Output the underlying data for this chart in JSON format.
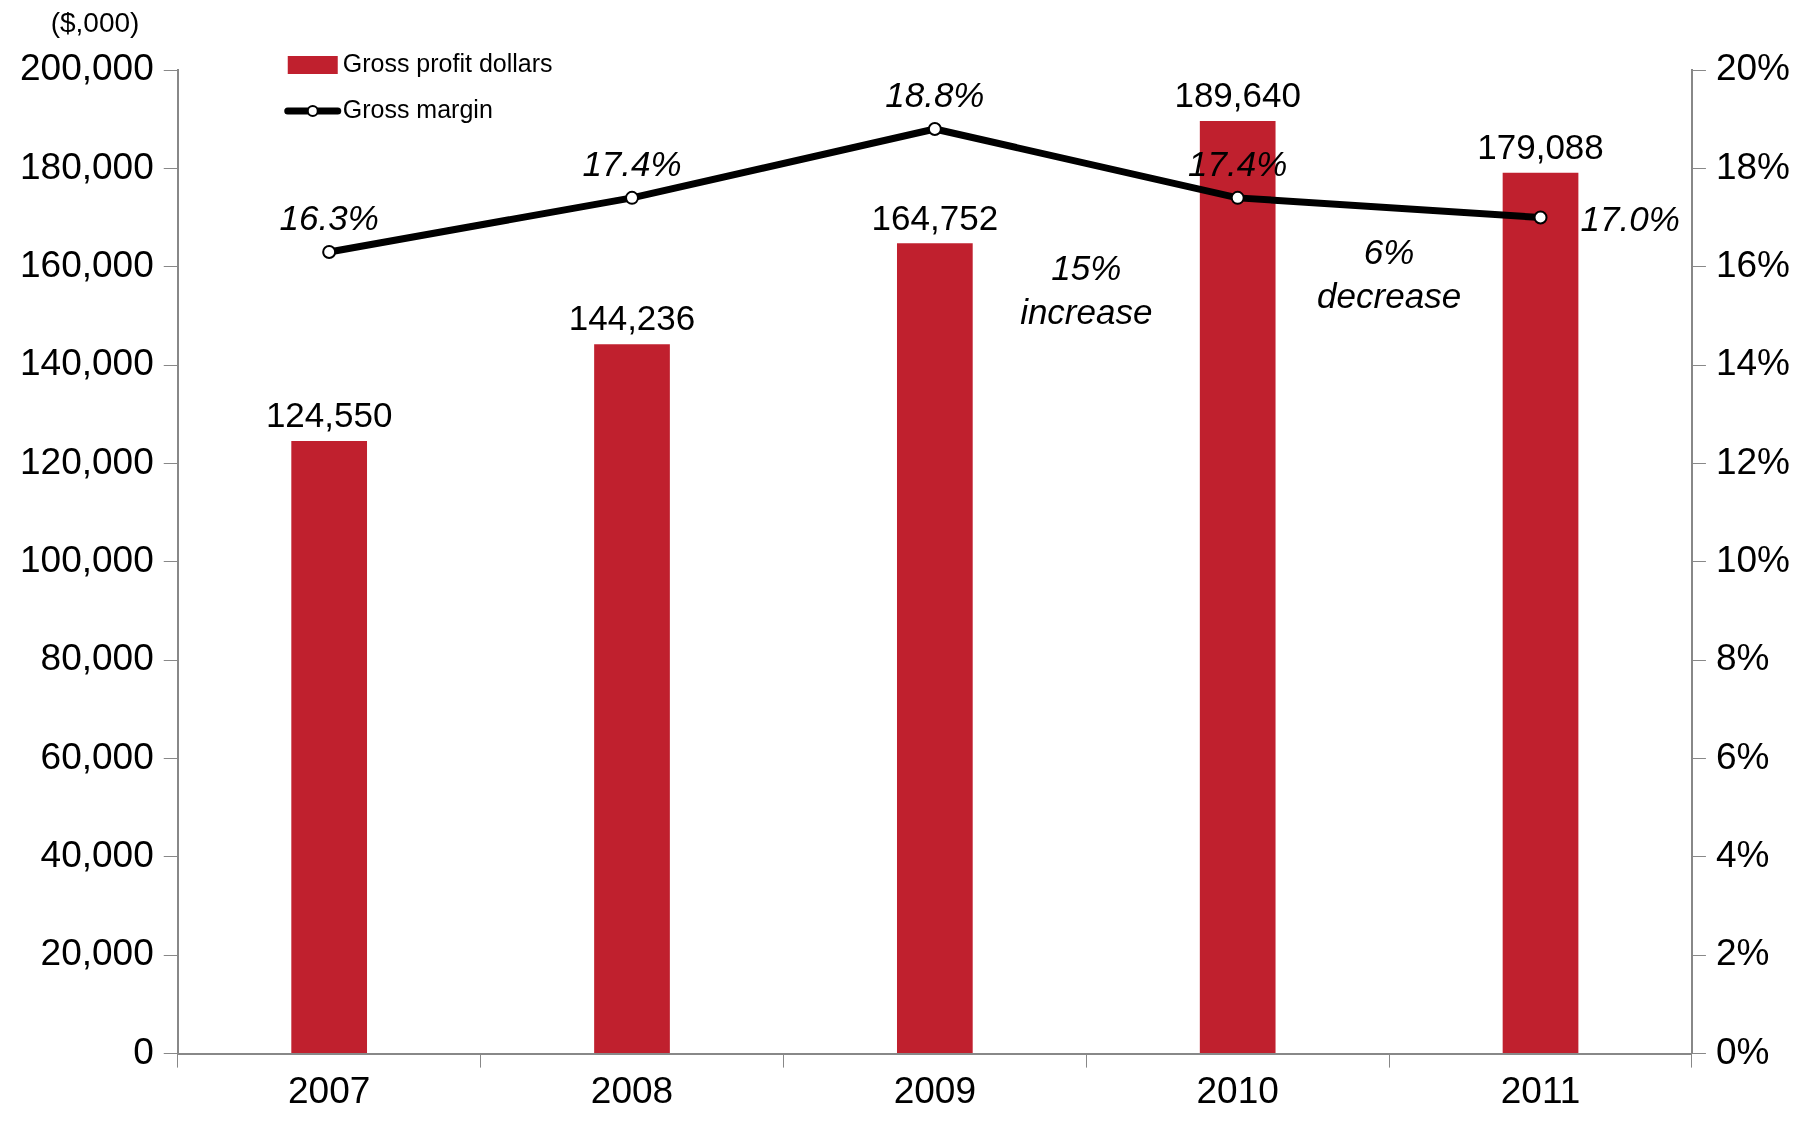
{
  "chart_data": {
    "type": "bar",
    "ylabel": "($,000)",
    "categories": [
      "2007",
      "2008",
      "2009",
      "2010",
      "2011"
    ],
    "series": [
      {
        "name": "Gross profit dollars",
        "color": "#c0202e",
        "values": [
          124550,
          144236,
          164752,
          189640,
          179088
        ],
        "value_labels": [
          "124,550",
          "144,236",
          "164,752",
          "189,640",
          "179,088"
        ]
      },
      {
        "name": "Gross margin",
        "type": "line",
        "axis": "y2",
        "color": "#000000",
        "values": [
          16.3,
          17.4,
          18.8,
          17.4,
          17.0
        ],
        "value_labels": [
          "16.3%",
          "17.4%",
          "18.8%",
          "17.4%",
          "17.0%"
        ]
      }
    ],
    "ylim": [
      0,
      200000
    ],
    "yticks": [
      0,
      {
        "value": 20000,
        "label": "20,000"
      },
      {
        "value": 40000,
        "label": "40,000"
      },
      {
        "value": 60000,
        "label": "60,000"
      },
      {
        "value": 80000,
        "label": "80,000"
      },
      {
        "value": 100000,
        "label": "100,000"
      },
      {
        "value": 120000,
        "label": "120,000"
      },
      {
        "value": 140000,
        "label": "140,000"
      },
      {
        "value": 160000,
        "label": "160,000"
      },
      {
        "value": 180000,
        "label": "180,000"
      },
      {
        "value": 200000,
        "label": "200,000"
      }
    ],
    "y2lim": [
      0,
      20
    ],
    "y2ticks": [
      {
        "value": 0,
        "label": "0%"
      },
      {
        "value": 2,
        "label": "2%"
      },
      {
        "value": 4,
        "label": "4%"
      },
      {
        "value": 6,
        "label": "6%"
      },
      {
        "value": 8,
        "label": "8%"
      },
      {
        "value": 10,
        "label": "10%"
      },
      {
        "value": 12,
        "label": "12%"
      },
      {
        "value": 14,
        "label": "14%"
      },
      {
        "value": 16,
        "label": "16%"
      },
      {
        "value": 18,
        "label": "18%"
      },
      {
        "value": 20,
        "label": "20%"
      }
    ],
    "annotations": [
      "15% increase",
      "6% decrease"
    ],
    "legend": "top left",
    "grid": false,
    "marker": "circle",
    "line_style": "solid"
  }
}
